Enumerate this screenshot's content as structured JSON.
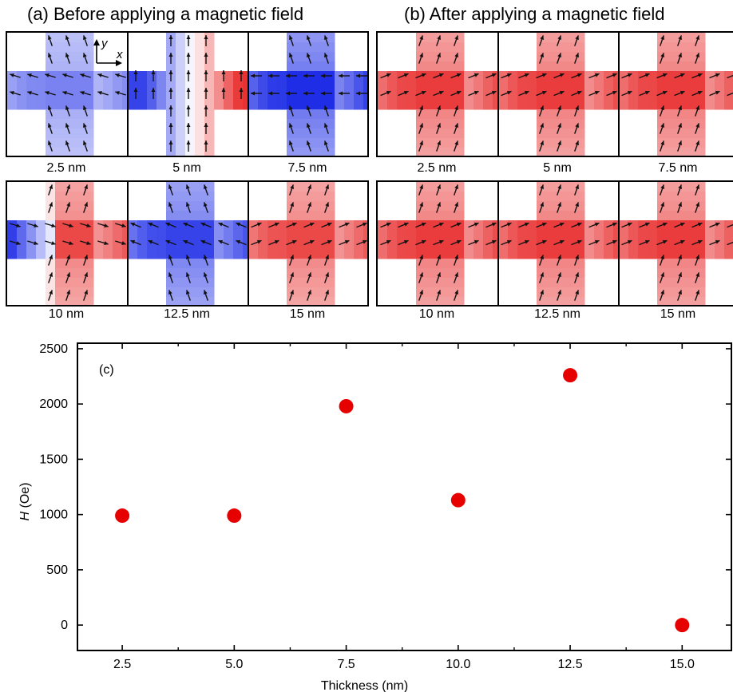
{
  "panel_a": {
    "title": "(a) Before applying a magnetic field",
    "axis_y": "y",
    "axis_x": "x",
    "rows": [
      [
        {
          "label": "2.5 nm",
          "color": "blue",
          "intensity": 0.6,
          "mx": -1,
          "my": -0.3
        },
        {
          "label": "5 nm",
          "color": "mixed",
          "intensity": 0.5,
          "mx": 0,
          "my": -1
        },
        {
          "label": "7.5 nm",
          "color": "blue",
          "intensity": 1.0,
          "mx": -1,
          "my": 0
        }
      ],
      [
        {
          "label": "10 nm",
          "color": "mixed-red",
          "intensity": 0.8,
          "mx": 1,
          "my": 0.3
        },
        {
          "label": "12.5 nm",
          "color": "blue",
          "intensity": 0.9,
          "mx": -1,
          "my": -0.4
        },
        {
          "label": "15 nm",
          "color": "red",
          "intensity": 0.8,
          "mx": 1,
          "my": -0.4
        }
      ]
    ]
  },
  "panel_b": {
    "title": "(b) After applying a magnetic field",
    "rows": [
      [
        {
          "label": "2.5 nm",
          "color": "red",
          "intensity": 0.85,
          "mx": 1,
          "my": -0.4
        },
        {
          "label": "5 nm",
          "color": "red",
          "intensity": 0.85,
          "mx": 1,
          "my": -0.4
        },
        {
          "label": "7.5 nm",
          "color": "red",
          "intensity": 0.85,
          "mx": 1,
          "my": -0.4
        }
      ],
      [
        {
          "label": "10 nm",
          "color": "red",
          "intensity": 0.85,
          "mx": 1,
          "my": -0.4
        },
        {
          "label": "12.5 nm",
          "color": "red",
          "intensity": 0.85,
          "mx": 1,
          "my": -0.4
        },
        {
          "label": "15 nm",
          "color": "red",
          "intensity": 0.85,
          "mx": 1,
          "my": -0.4
        }
      ]
    ]
  },
  "colors": {
    "blue": "#1f2ee6",
    "red": "#e61a1a",
    "marker": "#e60000"
  },
  "chart_data": {
    "type": "scatter",
    "panel_label": "(c)",
    "xlabel": "Thickness (nm)",
    "ylabel_italic": "H",
    "ylabel_unit": "(Oe)",
    "x": [
      2.5,
      5.0,
      7.5,
      10.0,
      12.5,
      15.0
    ],
    "y": [
      990,
      990,
      1980,
      1130,
      2260,
      0
    ],
    "xlim": [
      1.5,
      16.1
    ],
    "ylim": [
      -230,
      2550
    ],
    "xticks": [
      "2.5",
      "5.0",
      "7.5",
      "10.0",
      "12.5",
      "15.0"
    ],
    "yticks": [
      "0",
      "500",
      "1000",
      "1500",
      "2000",
      "2500"
    ],
    "grid": false
  }
}
